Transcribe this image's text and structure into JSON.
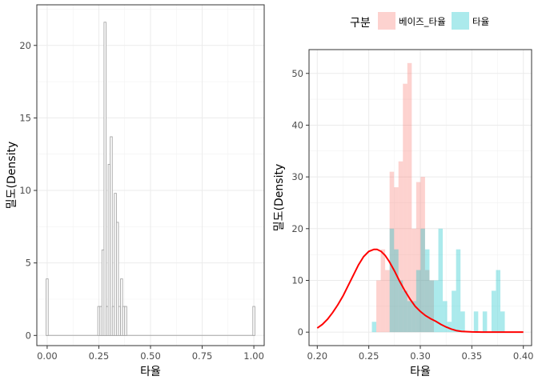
{
  "chart_data": [
    {
      "type": "histogram",
      "xlabel": "타율",
      "ylabel": "밀도(Density",
      "xlim": [
        -0.05,
        1.05
      ],
      "ylim": [
        -0.7,
        22.8
      ],
      "x_ticks": [
        0.0,
        0.25,
        0.5,
        0.75,
        1.0
      ],
      "x_tick_labels": [
        "0.00",
        "0.25",
        "0.50",
        "0.75",
        "1.00"
      ],
      "y_ticks": [
        0,
        5,
        10,
        15,
        20
      ],
      "y_tick_labels": [
        "0",
        "5",
        "10",
        "15",
        "20"
      ],
      "grid": true,
      "bar_fill": "#ffffff",
      "bar_stroke": "#a6a6a6",
      "bin_width": 0.01,
      "bins": [
        {
          "x0": -0.005,
          "x1": 0.005,
          "density": 3.9
        },
        {
          "x0": 0.245,
          "x1": 0.255,
          "density": 2.0
        },
        {
          "x0": 0.255,
          "x1": 0.265,
          "density": 2.0
        },
        {
          "x0": 0.265,
          "x1": 0.275,
          "density": 5.9
        },
        {
          "x0": 0.275,
          "x1": 0.285,
          "density": 21.6
        },
        {
          "x0": 0.285,
          "x1": 0.295,
          "density": 2.0
        },
        {
          "x0": 0.295,
          "x1": 0.305,
          "density": 11.8
        },
        {
          "x0": 0.305,
          "x1": 0.315,
          "density": 13.7
        },
        {
          "x0": 0.315,
          "x1": 0.325,
          "density": 2.0
        },
        {
          "x0": 0.325,
          "x1": 0.335,
          "density": 9.8
        },
        {
          "x0": 0.335,
          "x1": 0.345,
          "density": 7.8
        },
        {
          "x0": 0.345,
          "x1": 0.355,
          "density": 2.0
        },
        {
          "x0": 0.355,
          "x1": 0.365,
          "density": 3.9
        },
        {
          "x0": 0.365,
          "x1": 0.375,
          "density": 2.0
        },
        {
          "x0": 0.375,
          "x1": 0.385,
          "density": 2.0
        },
        {
          "x0": 0.995,
          "x1": 1.005,
          "density": 2.0
        }
      ]
    },
    {
      "type": "histogram",
      "xlabel": "타율",
      "ylabel": "밀도(Density",
      "xlim": [
        0.192,
        0.408
      ],
      "ylim": [
        -2.6,
        54.6
      ],
      "x_ticks": [
        0.2,
        0.25,
        0.3,
        0.35,
        0.4
      ],
      "x_tick_labels": [
        "0.20",
        "0.25",
        "0.30",
        "0.35",
        "0.40"
      ],
      "y_ticks": [
        0,
        10,
        20,
        30,
        40,
        50
      ],
      "y_tick_labels": [
        "0",
        "10",
        "20",
        "30",
        "40",
        "50"
      ],
      "grid": true,
      "legend": {
        "title": "구분",
        "position": "top",
        "entries": [
          {
            "label": "베이즈_타율",
            "color": "#f8766d"
          },
          {
            "label": "타율",
            "color": "#00bfc4"
          }
        ]
      },
      "bin_width": 0.0043,
      "series": [
        {
          "name": "베이즈_타율",
          "color": "#f8766d",
          "opacity": 0.33,
          "x_start": 0.253,
          "values": [
            0,
            10,
            16,
            12,
            31,
            28,
            33,
            48,
            52,
            20,
            29,
            30,
            12,
            10
          ]
        },
        {
          "name": "타율",
          "color": "#00bfc4",
          "opacity": 0.33,
          "x_start": 0.253,
          "values": [
            2,
            0,
            0,
            0,
            20,
            16,
            10,
            8,
            6,
            6,
            12,
            20,
            16,
            10,
            10,
            20,
            6,
            2,
            8,
            16,
            4,
            0,
            0,
            4,
            0,
            4,
            0,
            8,
            12,
            4
          ]
        }
      ],
      "density_curve": {
        "color": "#ff0000",
        "x": [
          0.2,
          0.205,
          0.21,
          0.215,
          0.22,
          0.225,
          0.23,
          0.235,
          0.24,
          0.245,
          0.25,
          0.255,
          0.258,
          0.262,
          0.266,
          0.27,
          0.275,
          0.28,
          0.285,
          0.29,
          0.295,
          0.3,
          0.305,
          0.31,
          0.315,
          0.32,
          0.325,
          0.33,
          0.335,
          0.34,
          0.35,
          0.36,
          0.37,
          0.38,
          0.39,
          0.4
        ],
        "y": [
          0.8,
          1.5,
          2.5,
          3.8,
          5.3,
          7.0,
          9.0,
          11.0,
          13.0,
          14.6,
          15.6,
          16.0,
          16.0,
          15.6,
          14.8,
          13.6,
          11.8,
          9.8,
          8.0,
          6.4,
          5.0,
          4.0,
          3.2,
          2.6,
          2.1,
          1.5,
          1.0,
          0.6,
          0.3,
          0.15,
          0.05,
          0.0,
          0.0,
          0.0,
          0.0,
          0.0
        ]
      }
    }
  ]
}
